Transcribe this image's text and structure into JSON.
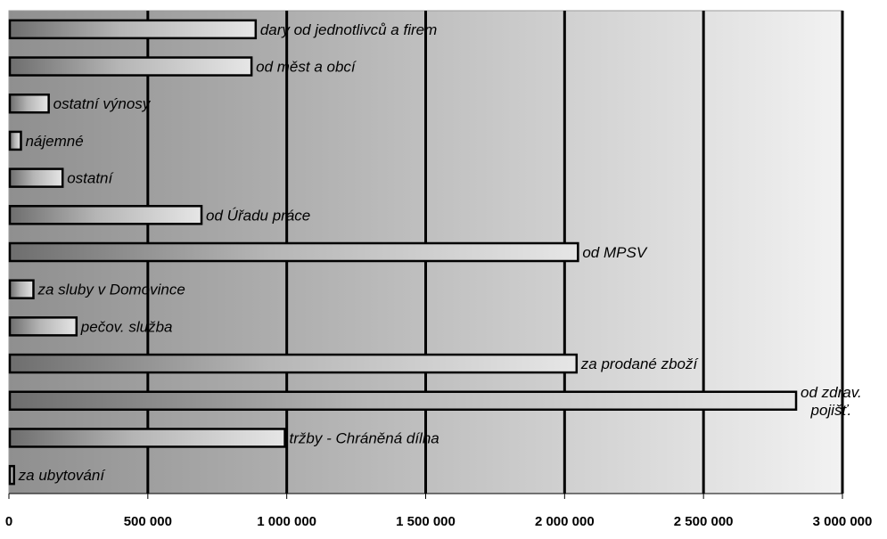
{
  "chart_data": {
    "type": "bar",
    "orientation": "horizontal",
    "title": "",
    "xlabel": "",
    "ylabel": "",
    "xlim": [
      0,
      3000000
    ],
    "grid": true,
    "legend": "none",
    "x_ticks": [
      0,
      500000,
      1000000,
      1500000,
      2000000,
      2500000,
      3000000
    ],
    "x_tick_labels": [
      "0",
      "500 000",
      "1 000 000",
      "1 500 000",
      "2 000 000",
      "2 500 000",
      "3 000 000"
    ],
    "categories": [
      "dary od jednotlivců a firem",
      "od měst a obcí",
      "ostatní  výnosy",
      "nájemné",
      "ostatní",
      "od Úřadu práce",
      "od MPSV",
      "za sluby v Domovince",
      "pečov. služba",
      "za prodané zboží",
      "od zdrav. pojišť.",
      "tržby - Chráněná dílna",
      "za ubytování"
    ],
    "values": [
      885000,
      870000,
      140000,
      40000,
      190000,
      690000,
      2045000,
      85000,
      240000,
      2040000,
      2830000,
      990000,
      15000
    ]
  }
}
